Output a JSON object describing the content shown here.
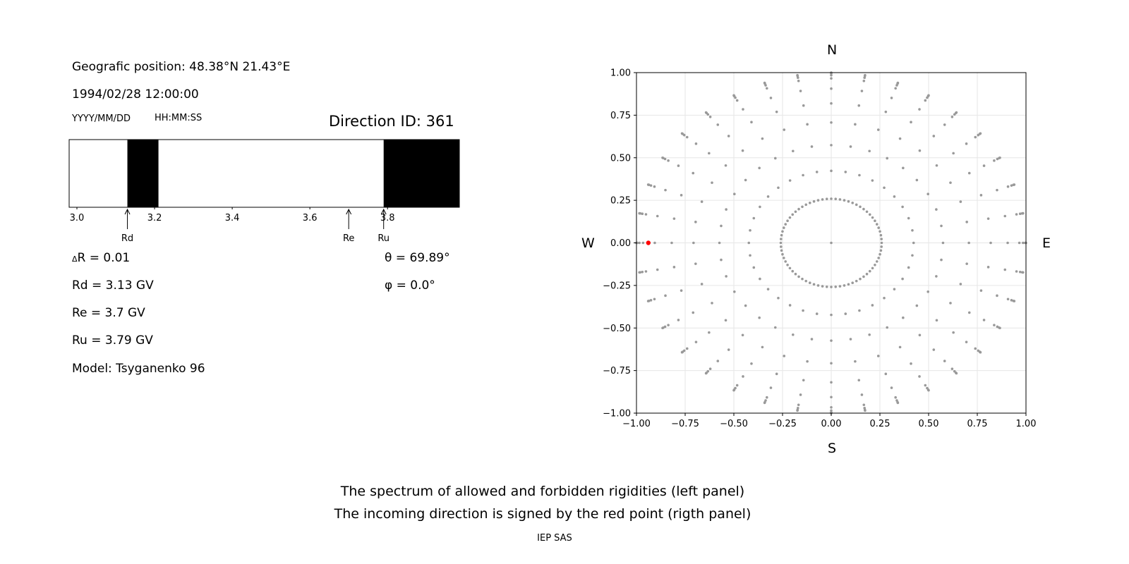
{
  "left_panel": {
    "geo_position": "Geografic position: 48.38°N 21.43°E",
    "datetime": "1994/02/28 12:00:00",
    "date_format_label": "YYYY/MM/DD",
    "time_format_label": "HH:MM:SS",
    "direction_id": "Direction ID: 361",
    "delta_r_symbol": "Δ",
    "delta_r_rest": "R = 0.01",
    "rd": "Rd = 3.13 GV",
    "re": "Re = 3.7 GV",
    "ru": "Ru = 3.79 GV",
    "model": "Model: Tsyganenko 96",
    "theta": "θ = 69.89°",
    "phi": "φ = 0.0°"
  },
  "right_panel": {
    "north": "N",
    "south": "S",
    "west": "W",
    "east": "E"
  },
  "footer": {
    "line1": "The spectrum of allowed and forbidden rigidities (left panel)",
    "line2": "The incoming direction is signed by the red point (rigth panel)",
    "credit": "IEP SAS"
  },
  "colors": {
    "forbidden": "#000000",
    "allowed": "#ffffff",
    "grid_point": "#999999",
    "direction_point": "#ff0000"
  },
  "chart_data": [
    {
      "type": "bar",
      "xlim": [
        2.98,
        3.985
      ],
      "x_ticks": [
        "3.0",
        "3.2",
        "3.4",
        "3.6",
        "3.8"
      ],
      "forbidden_bands": [
        [
          3.13,
          3.21
        ],
        [
          3.79,
          3.985
        ]
      ],
      "markers": [
        {
          "label": "Rd",
          "value": 3.13
        },
        {
          "label": "Re",
          "value": 3.7
        },
        {
          "label": "Ru",
          "value": 3.79
        }
      ],
      "delta_r": 0.01,
      "grid": false
    },
    {
      "type": "scatter",
      "xlim": [
        -1.0,
        1.0
      ],
      "ylim": [
        -1.0,
        1.0
      ],
      "x_ticks": [
        "−1.00",
        "−0.75",
        "−0.50",
        "−0.25",
        "0.00",
        "0.25",
        "0.50",
        "0.75",
        "1.00"
      ],
      "y_ticks": [
        "1.00",
        "0.75",
        "0.50",
        "0.25",
        "0.00",
        "−0.25",
        "−0.50",
        "−0.75",
        "−1.00"
      ],
      "grid": true,
      "grid_rings_sin_theta": [
        0.0,
        0.259,
        0.423,
        0.574,
        0.707,
        0.819,
        0.906,
        0.966,
        0.985,
        0.996,
        1.0
      ],
      "grid_azimuths_deg": [
        0,
        10,
        20,
        30,
        40,
        50,
        60,
        70,
        80,
        90,
        100,
        110,
        120,
        130,
        140,
        150,
        160,
        170,
        180,
        190,
        200,
        210,
        220,
        230,
        240,
        250,
        260,
        270,
        280,
        290,
        300,
        310,
        320,
        330,
        340,
        350
      ],
      "highlight": {
        "x": -0.939,
        "y": 0.0
      }
    }
  ]
}
